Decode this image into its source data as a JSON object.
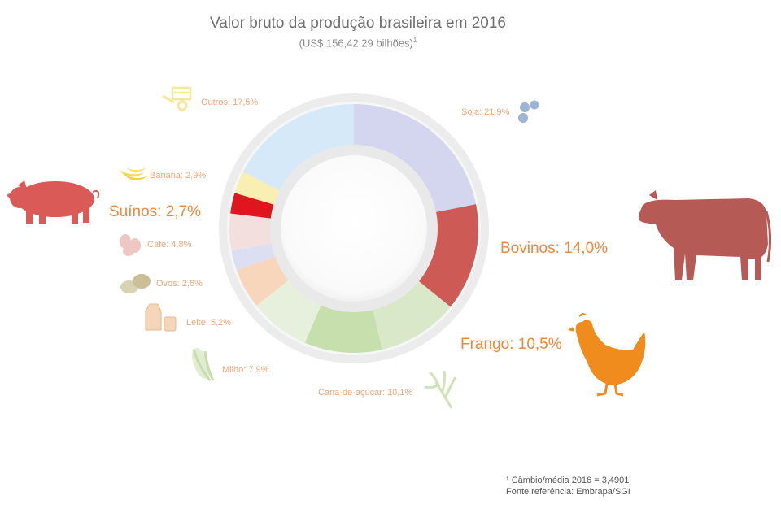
{
  "chart_data": {
    "type": "pie",
    "title": "Valor bruto da produção brasileira em 2016",
    "subtitle": "(US$ 156,42,29 bilhões)",
    "subtitle_sup": "1",
    "unit": "%",
    "slices": [
      {
        "label": "Soja: 21,9%",
        "value": 21.9,
        "color": "#d3d6ee"
      },
      {
        "label": "Bovinos: 14,0%",
        "value": 14.0,
        "color": "#cd5a55",
        "highlight": true
      },
      {
        "label": "Frango: 10,5%",
        "value": 10.5,
        "color": "#d8e8c8",
        "highlight": true
      },
      {
        "label": "Cana-de-açúcar: 10,1%",
        "value": 10.1,
        "color": "#c6dfad"
      },
      {
        "label": "Milho: 7,9%",
        "value": 7.9,
        "color": "#e6f0dc"
      },
      {
        "label": "Leite: 5,2%",
        "value": 5.2,
        "color": "#f8d6bc"
      },
      {
        "label": "Ovos: 2,6%",
        "value": 2.6,
        "color": "#dcdff2"
      },
      {
        "label": "Café: 4,8%",
        "value": 4.8,
        "color": "#f3e0de"
      },
      {
        "label": "Suínos: 2,7%",
        "value": 2.7,
        "color": "#e0161e",
        "highlight": true
      },
      {
        "label": "Banana: 2,9%",
        "value": 2.9,
        "color": "#f9efb0"
      },
      {
        "label": "Outros: 17,5%",
        "value": 17.5,
        "color": "#d6e9f8"
      }
    ]
  },
  "footnote": {
    "line1": "¹ Câmbio/média 2016 = 3,4901",
    "line2": "Fonte referência: Embrapa/SGI"
  },
  "icons": [
    "wheelbarrow-icon",
    "soy-icon",
    "banana-icon",
    "pig-icon",
    "coffee-icon",
    "eggs-icon",
    "milk-icon",
    "corn-icon",
    "sugarcane-icon",
    "cow-icon",
    "chicken-icon"
  ],
  "colors": {
    "label_orange": "#f0873a",
    "bovinos_label": "#ee8a4a",
    "frango_icon": "#f08c1e",
    "pig_icon": "#d95a56",
    "cow_icon": "#b65a56"
  }
}
